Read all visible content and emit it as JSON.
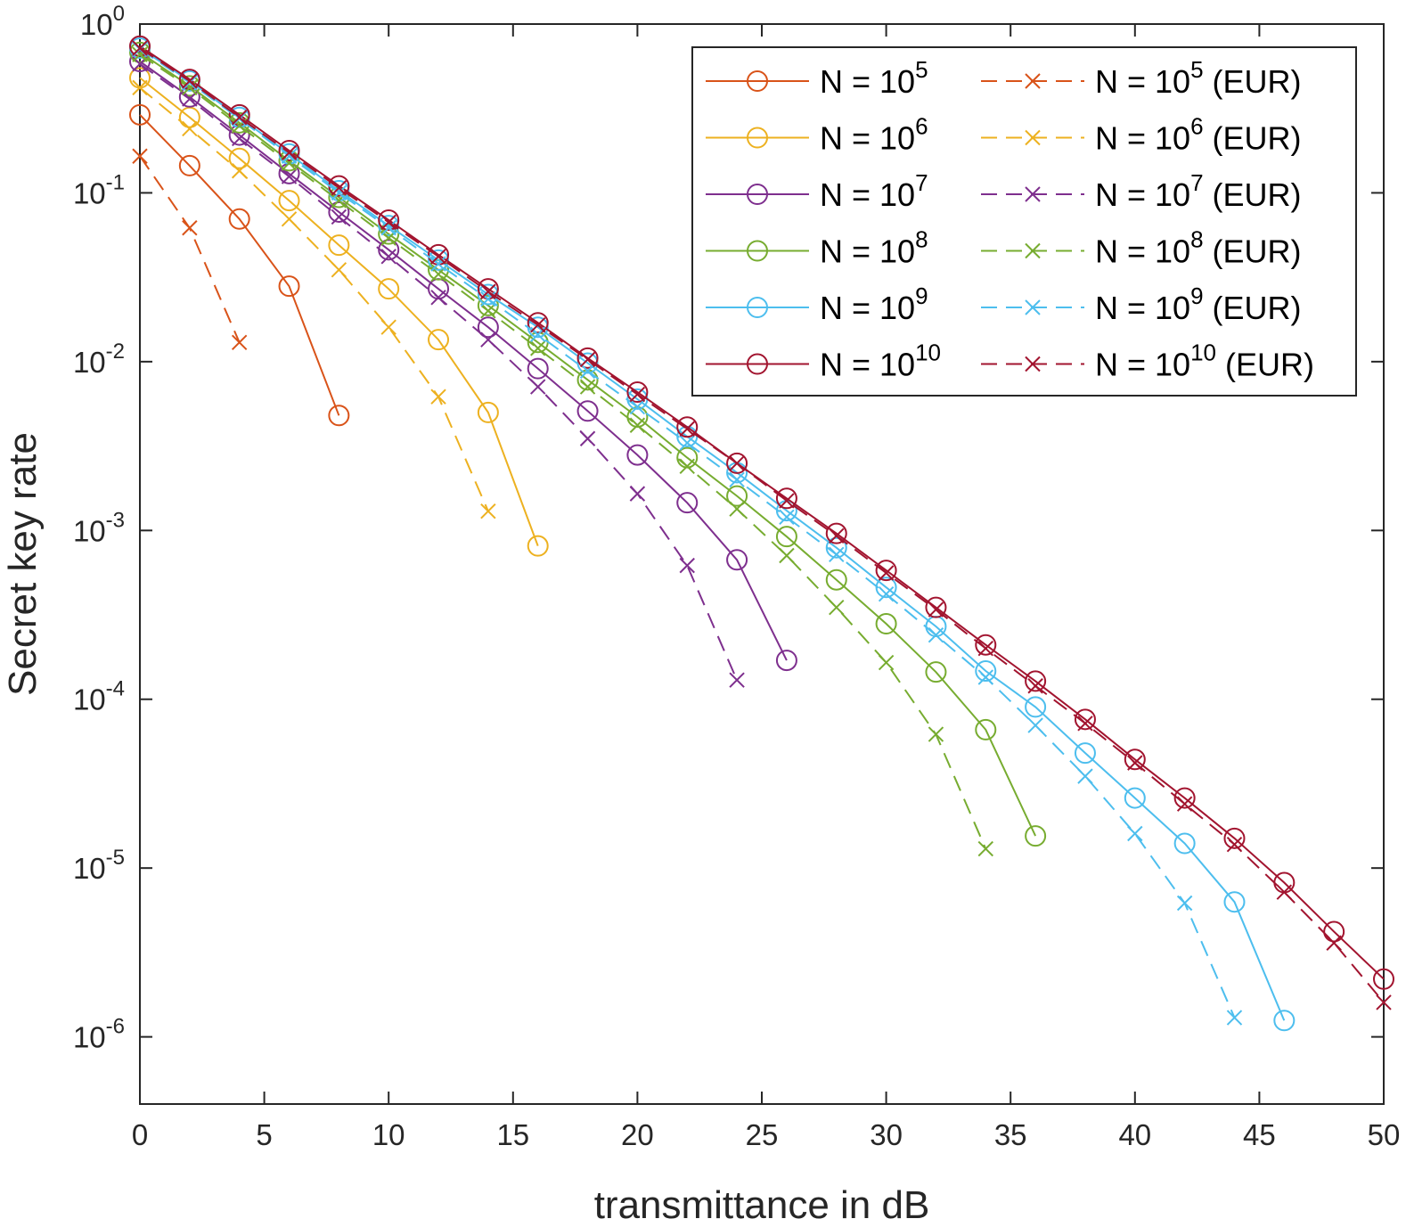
{
  "chart_data": {
    "type": "line",
    "title": "",
    "xlabel": "transmittance in dB",
    "ylabel": "Secret key rate",
    "xscale": "linear",
    "yscale": "log",
    "xlim": [
      0,
      50
    ],
    "ylim": [
      4e-07,
      1
    ],
    "xticks": [
      0,
      5,
      10,
      15,
      20,
      25,
      30,
      35,
      40,
      45,
      50
    ],
    "yticks": [
      {
        "value": 1e-06,
        "base": "10",
        "exp": "-6"
      },
      {
        "value": 1e-05,
        "base": "10",
        "exp": "-5"
      },
      {
        "value": 0.0001,
        "base": "10",
        "exp": "-4"
      },
      {
        "value": 0.001,
        "base": "10",
        "exp": "-3"
      },
      {
        "value": 0.01,
        "base": "10",
        "exp": "-2"
      },
      {
        "value": 0.1,
        "base": "10",
        "exp": "-1"
      },
      {
        "value": 1,
        "base": "10",
        "exp": "0"
      }
    ],
    "legend_position": "top-right",
    "series": [
      {
        "name": "N = 10^5",
        "label_pre": "N = 10",
        "label_exp": "5",
        "label_post": "",
        "color": "#D95319",
        "style": "solid",
        "marker": "circle",
        "x": [
          0,
          2,
          4,
          6,
          8
        ],
        "y": [
          0.29,
          0.145,
          0.07,
          0.028,
          0.0048
        ]
      },
      {
        "name": "N = 10^6",
        "label_pre": "N = 10",
        "label_exp": "6",
        "label_post": "",
        "color": "#EDB120",
        "style": "solid",
        "marker": "circle",
        "x": [
          0,
          2,
          4,
          6,
          8,
          10,
          12,
          14,
          16
        ],
        "y": [
          0.48,
          0.28,
          0.16,
          0.09,
          0.049,
          0.027,
          0.0135,
          0.005,
          0.00081
        ]
      },
      {
        "name": "N = 10^7",
        "label_pre": "N = 10",
        "label_exp": "7",
        "label_post": "",
        "color": "#7E2F8E",
        "style": "solid",
        "marker": "circle",
        "x": [
          0,
          2,
          4,
          6,
          8,
          10,
          12,
          14,
          16,
          18,
          20,
          22,
          24,
          26
        ],
        "y": [
          0.6,
          0.37,
          0.22,
          0.13,
          0.077,
          0.046,
          0.027,
          0.016,
          0.0091,
          0.0051,
          0.0028,
          0.00146,
          0.00067,
          0.00017
        ]
      },
      {
        "name": "N = 10^8",
        "label_pre": "N = 10",
        "label_exp": "8",
        "label_post": "",
        "color": "#77AC30",
        "style": "solid",
        "marker": "circle",
        "x": [
          0,
          2,
          4,
          6,
          8,
          10,
          12,
          14,
          16,
          18,
          20,
          22,
          24,
          26,
          28,
          30,
          32,
          34,
          36
        ],
        "y": [
          0.68,
          0.43,
          0.26,
          0.155,
          0.094,
          0.057,
          0.035,
          0.0215,
          0.013,
          0.0078,
          0.0047,
          0.0027,
          0.0016,
          0.00092,
          0.00051,
          0.00028,
          0.000145,
          6.6e-05,
          1.55e-05
        ]
      },
      {
        "name": "N = 10^9",
        "label_pre": "N = 10",
        "label_exp": "9",
        "label_post": "",
        "color": "#4DBEEE",
        "style": "solid",
        "marker": "circle",
        "x": [
          0,
          2,
          4,
          6,
          8,
          10,
          12,
          14,
          16,
          18,
          20,
          22,
          24,
          26,
          28,
          30,
          32,
          34,
          36,
          38,
          40,
          42,
          44,
          46
        ],
        "y": [
          0.72,
          0.46,
          0.28,
          0.17,
          0.103,
          0.064,
          0.04,
          0.025,
          0.016,
          0.0098,
          0.006,
          0.0036,
          0.0022,
          0.00131,
          0.00079,
          0.00046,
          0.00027,
          0.000147,
          9e-05,
          4.8e-05,
          2.6e-05,
          1.4e-05,
          6.3e-06,
          1.25e-06
        ]
      },
      {
        "name": "N = 10^10",
        "label_pre": "N = 10",
        "label_exp": "10",
        "label_post": "",
        "color": "#A2142F",
        "style": "solid",
        "marker": "circle",
        "x": [
          0,
          2,
          4,
          6,
          8,
          10,
          12,
          14,
          16,
          18,
          20,
          22,
          24,
          26,
          28,
          30,
          32,
          34,
          36,
          38,
          40,
          42,
          44,
          46,
          48,
          50
        ],
        "y": [
          0.74,
          0.47,
          0.29,
          0.178,
          0.11,
          0.069,
          0.043,
          0.027,
          0.017,
          0.0105,
          0.0066,
          0.0041,
          0.0025,
          0.00155,
          0.00096,
          0.00058,
          0.00035,
          0.00021,
          0.000128,
          7.6e-05,
          4.4e-05,
          2.6e-05,
          1.5e-05,
          8.2e-06,
          4.2e-06,
          2.2e-06
        ]
      },
      {
        "name": "N = 10^5 (EUR)",
        "label_pre": "N = 10",
        "label_exp": "5",
        "label_post": " (EUR)",
        "color": "#D95319",
        "style": "dashed",
        "marker": "x",
        "x": [
          0,
          2,
          4
        ],
        "y": [
          0.165,
          0.062,
          0.013
        ]
      },
      {
        "name": "N = 10^6 (EUR)",
        "label_pre": "N = 10",
        "label_exp": "6",
        "label_post": " (EUR)",
        "color": "#EDB120",
        "style": "dashed",
        "marker": "x",
        "x": [
          0,
          2,
          4,
          6,
          8,
          10,
          12,
          14
        ],
        "y": [
          0.42,
          0.24,
          0.135,
          0.07,
          0.035,
          0.016,
          0.0062,
          0.0013
        ]
      },
      {
        "name": "N = 10^7 (EUR)",
        "label_pre": "N = 10",
        "label_exp": "7",
        "label_post": " (EUR)",
        "color": "#7E2F8E",
        "style": "dashed",
        "marker": "x",
        "x": [
          0,
          2,
          4,
          6,
          8,
          10,
          12,
          14,
          16,
          18,
          20,
          22,
          24
        ],
        "y": [
          0.58,
          0.36,
          0.21,
          0.125,
          0.072,
          0.042,
          0.024,
          0.0135,
          0.0071,
          0.0035,
          0.00165,
          0.00062,
          0.00013
        ]
      },
      {
        "name": "N = 10^8 (EUR)",
        "label_pre": "N = 10",
        "label_exp": "8",
        "label_post": " (EUR)",
        "color": "#77AC30",
        "style": "dashed",
        "marker": "x",
        "x": [
          0,
          2,
          4,
          6,
          8,
          10,
          12,
          14,
          16,
          18,
          20,
          22,
          24,
          26,
          28,
          30,
          32,
          34
        ],
        "y": [
          0.66,
          0.42,
          0.25,
          0.15,
          0.09,
          0.054,
          0.033,
          0.02,
          0.012,
          0.0071,
          0.0042,
          0.0024,
          0.00134,
          0.00071,
          0.00035,
          0.000165,
          6.2e-05,
          1.3e-05
        ]
      },
      {
        "name": "N = 10^9 (EUR)",
        "label_pre": "N = 10",
        "label_exp": "9",
        "label_post": " (EUR)",
        "color": "#4DBEEE",
        "style": "dashed",
        "marker": "x",
        "x": [
          0,
          2,
          4,
          6,
          8,
          10,
          12,
          14,
          16,
          18,
          20,
          22,
          24,
          26,
          28,
          30,
          32,
          34,
          36,
          38,
          40,
          42,
          44
        ],
        "y": [
          0.71,
          0.45,
          0.275,
          0.165,
          0.1,
          0.062,
          0.038,
          0.0235,
          0.0145,
          0.0088,
          0.0054,
          0.0033,
          0.002,
          0.0012,
          0.00072,
          0.00042,
          0.00024,
          0.000135,
          7e-05,
          3.5e-05,
          1.6e-05,
          6.2e-06,
          1.3e-06
        ]
      },
      {
        "name": "N = 10^10 (EUR)",
        "label_pre": "N = 10",
        "label_exp": "10",
        "label_post": " (EUR)",
        "color": "#A2142F",
        "style": "dashed",
        "marker": "x",
        "x": [
          0,
          2,
          4,
          6,
          8,
          10,
          12,
          14,
          16,
          18,
          20,
          22,
          24,
          26,
          28,
          30,
          32,
          34,
          36,
          38,
          40,
          42,
          44,
          46,
          48,
          50
        ],
        "y": [
          0.72,
          0.46,
          0.28,
          0.173,
          0.107,
          0.067,
          0.042,
          0.026,
          0.0165,
          0.0103,
          0.0064,
          0.004,
          0.0025,
          0.0015,
          0.00093,
          0.00056,
          0.00034,
          0.0002,
          0.00012,
          7.2e-05,
          4.2e-05,
          2.4e-05,
          1.38e-05,
          7.2e-06,
          3.6e-06,
          1.6e-06
        ]
      }
    ]
  }
}
